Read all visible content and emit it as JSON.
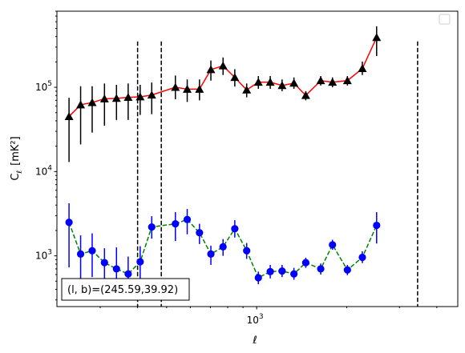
{
  "chart_data": {
    "type": "scatter",
    "xlabel": "ℓ",
    "ylabel_main": "C",
    "ylabel_sub": "ℓ",
    "ylabel_unit": "[mK²]",
    "xscale": "log",
    "yscale": "log",
    "xlim": [
      215,
      4700
    ],
    "ylim": [
      250,
      800000
    ],
    "x_tick_labels": [
      {
        "value": 1000,
        "base": "10",
        "exp": "3"
      }
    ],
    "y_tick_labels": [
      {
        "value": 1000,
        "base": "10",
        "exp": "3"
      },
      {
        "value": 10000,
        "base": "10",
        "exp": "4"
      },
      {
        "value": 100000,
        "base": "10",
        "exp": "5"
      }
    ],
    "grid": false,
    "legend": {
      "placement": "top-right",
      "entries": []
    },
    "vlines": [
      400,
      480,
      3450
    ],
    "annotation": "(l, b)=(245.59,39.92)",
    "series": [
      {
        "color": "#ff0000",
        "marker_color": "#000000",
        "marker": "triangle",
        "linestyle": "solid",
        "points": [
          {
            "x": 236,
            "y": 45000,
            "lo": 13000,
            "hi": 75000
          },
          {
            "x": 258,
            "y": 62000,
            "lo": 21000,
            "hi": 103000
          },
          {
            "x": 282,
            "y": 66000,
            "lo": 29000,
            "hi": 103000
          },
          {
            "x": 310,
            "y": 73000,
            "lo": 35000,
            "hi": 111000
          },
          {
            "x": 340,
            "y": 74000,
            "lo": 41000,
            "hi": 107000
          },
          {
            "x": 372,
            "y": 76000,
            "lo": 41000,
            "hi": 111000
          },
          {
            "x": 408,
            "y": 77000,
            "lo": 47000,
            "hi": 107000
          },
          {
            "x": 446,
            "y": 81000,
            "lo": 48000,
            "hi": 114000
          },
          {
            "x": 535,
            "y": 100000,
            "lo": 72000,
            "hi": 138000
          },
          {
            "x": 586,
            "y": 95000,
            "lo": 67000,
            "hi": 124000
          },
          {
            "x": 644,
            "y": 95000,
            "lo": 70000,
            "hi": 124000
          },
          {
            "x": 703,
            "y": 162000,
            "lo": 120000,
            "hi": 208000
          },
          {
            "x": 772,
            "y": 180000,
            "lo": 140000,
            "hi": 226000
          },
          {
            "x": 845,
            "y": 131000,
            "lo": 102000,
            "hi": 164000
          },
          {
            "x": 926,
            "y": 93000,
            "lo": 76000,
            "hi": 111000
          },
          {
            "x": 1013,
            "y": 115000,
            "lo": 96000,
            "hi": 136000
          },
          {
            "x": 1110,
            "y": 115000,
            "lo": 96000,
            "hi": 136000
          },
          {
            "x": 1216,
            "y": 105000,
            "lo": 90000,
            "hi": 124000
          },
          {
            "x": 1332,
            "y": 112000,
            "lo": 96000,
            "hi": 131000
          },
          {
            "x": 1459,
            "y": 80000,
            "lo": 70000,
            "hi": 90000
          },
          {
            "x": 1637,
            "y": 120000,
            "lo": 105000,
            "hi": 136000
          },
          {
            "x": 1792,
            "y": 115000,
            "lo": 100000,
            "hi": 131000
          },
          {
            "x": 2010,
            "y": 120000,
            "lo": 105000,
            "hi": 136000
          },
          {
            "x": 2255,
            "y": 167000,
            "lo": 140000,
            "hi": 202000
          },
          {
            "x": 2517,
            "y": 390000,
            "lo": 235000,
            "hi": 530000
          }
        ]
      },
      {
        "color": "#008000",
        "marker_color": "#0000ff",
        "marker": "circle",
        "linestyle": "dashed",
        "points": [
          {
            "x": 236,
            "y": 2500,
            "lo": 730,
            "hi": 4200
          },
          {
            "x": 258,
            "y": 1050,
            "lo": 400,
            "hi": 1750
          },
          {
            "x": 282,
            "y": 1150,
            "lo": 560,
            "hi": 1850
          },
          {
            "x": 310,
            "y": 830,
            "lo": 500,
            "hi": 1230
          },
          {
            "x": 340,
            "y": 700,
            "lo": 450,
            "hi": 1260
          },
          {
            "x": 372,
            "y": 610,
            "lo": 420,
            "hi": 980
          },
          {
            "x": 408,
            "y": 850,
            "lo": 420,
            "hi": 1300
          },
          {
            "x": 446,
            "y": 2200,
            "lo": 1600,
            "hi": 2950
          },
          {
            "x": 535,
            "y": 2400,
            "lo": 1500,
            "hi": 3300
          },
          {
            "x": 586,
            "y": 2700,
            "lo": 1800,
            "hi": 3600
          },
          {
            "x": 644,
            "y": 1880,
            "lo": 1380,
            "hi": 2400
          },
          {
            "x": 703,
            "y": 1050,
            "lo": 780,
            "hi": 1320
          },
          {
            "x": 772,
            "y": 1280,
            "lo": 1000,
            "hi": 1580
          },
          {
            "x": 845,
            "y": 2100,
            "lo": 1650,
            "hi": 2650
          },
          {
            "x": 926,
            "y": 1150,
            "lo": 920,
            "hi": 1420
          },
          {
            "x": 1013,
            "y": 550,
            "lo": 460,
            "hi": 650
          },
          {
            "x": 1110,
            "y": 650,
            "lo": 540,
            "hi": 780
          },
          {
            "x": 1216,
            "y": 660,
            "lo": 560,
            "hi": 780
          },
          {
            "x": 1332,
            "y": 610,
            "lo": 520,
            "hi": 720
          },
          {
            "x": 1459,
            "y": 830,
            "lo": 720,
            "hi": 950
          },
          {
            "x": 1637,
            "y": 700,
            "lo": 600,
            "hi": 810
          },
          {
            "x": 1792,
            "y": 1350,
            "lo": 1180,
            "hi": 1550
          },
          {
            "x": 2010,
            "y": 680,
            "lo": 590,
            "hi": 780
          },
          {
            "x": 2255,
            "y": 960,
            "lo": 820,
            "hi": 1130
          },
          {
            "x": 2517,
            "y": 2300,
            "lo": 1400,
            "hi": 3300
          }
        ]
      }
    ]
  }
}
